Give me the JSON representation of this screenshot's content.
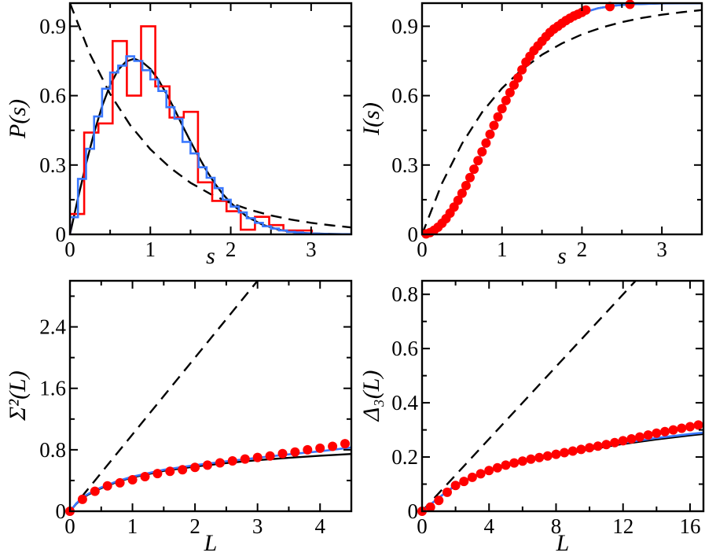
{
  "chart_data": [
    {
      "type": "line",
      "xlabel": "s",
      "ylabel": "P(s)",
      "xlim": [
        0,
        3.5
      ],
      "ylim": [
        0,
        1.0
      ],
      "xticks": [
        "0",
        "1",
        "2",
        "3"
      ],
      "yticks": [
        "0",
        "0.3",
        "0.6",
        "0.9"
      ],
      "grid": false,
      "series": [
        {
          "kind": "line",
          "color": "#000000",
          "dashed": true,
          "x": [
            0,
            0.25,
            0.5,
            0.75,
            1,
            1.25,
            1.5,
            1.75,
            2,
            2.25,
            2.5,
            2.75,
            3,
            3.25,
            3.5
          ],
          "y": [
            1,
            0.779,
            0.607,
            0.472,
            0.368,
            0.287,
            0.223,
            0.174,
            0.135,
            0.105,
            0.082,
            0.064,
            0.05,
            0.039,
            0.03
          ]
        },
        {
          "kind": "line",
          "color": "#000000",
          "dashed": false,
          "x": [
            0,
            0.1,
            0.2,
            0.3,
            0.4,
            0.5,
            0.6,
            0.7,
            0.8,
            0.9,
            1.0,
            1.1,
            1.2,
            1.3,
            1.4,
            1.5,
            1.6,
            1.7,
            1.8,
            1.9,
            2.0,
            2.2,
            2.4,
            2.6,
            2.8,
            3.0,
            3.5
          ],
          "y": [
            0,
            0.156,
            0.305,
            0.439,
            0.554,
            0.646,
            0.712,
            0.748,
            0.76,
            0.745,
            0.716,
            0.669,
            0.608,
            0.541,
            0.47,
            0.402,
            0.336,
            0.275,
            0.221,
            0.175,
            0.136,
            0.077,
            0.041,
            0.02,
            0.009,
            0.004,
            0.0003
          ]
        },
        {
          "kind": "step",
          "color": "#ff0000",
          "bin_width": 0.177,
          "values": [
            0.088,
            0.44,
            0.48,
            0.836,
            0.6,
            0.9,
            0.64,
            0.505,
            0.53,
            0.225,
            0.145,
            0.1,
            0.02,
            0.076,
            0.04,
            0.017,
            0.017
          ]
        },
        {
          "kind": "step",
          "color": "#3a78ff",
          "bin_width": 0.1,
          "values": [
            0.074,
            0.24,
            0.37,
            0.51,
            0.63,
            0.7,
            0.73,
            0.77,
            0.75,
            0.71,
            0.67,
            0.62,
            0.55,
            0.5,
            0.4,
            0.35,
            0.29,
            0.245,
            0.2,
            0.15,
            0.12,
            0.095,
            0.07,
            0.05,
            0.035,
            0.025,
            0.017,
            0.011,
            0.008,
            0.005,
            0.003,
            0.002,
            0.001,
            0.001,
            0.001
          ]
        }
      ]
    },
    {
      "type": "line",
      "xlabel": "s",
      "ylabel": "I(s)",
      "xlim": [
        0,
        3.5
      ],
      "ylim": [
        0,
        1.0
      ],
      "xticks": [
        "0",
        "1",
        "2",
        "3"
      ],
      "yticks": [
        "0",
        "0.3",
        "0.6",
        "0.9"
      ],
      "grid": false,
      "series": [
        {
          "kind": "line",
          "color": "#000000",
          "dashed": true,
          "x": [
            0,
            0.25,
            0.5,
            0.75,
            1,
            1.25,
            1.5,
            1.75,
            2,
            2.25,
            2.5,
            2.75,
            3,
            3.25,
            3.5
          ],
          "y": [
            0,
            0.221,
            0.393,
            0.528,
            0.632,
            0.713,
            0.777,
            0.826,
            0.865,
            0.895,
            0.918,
            0.936,
            0.95,
            0.961,
            0.97
          ]
        },
        {
          "kind": "scatter",
          "color": "#ff0000",
          "x": [
            0.05,
            0.1,
            0.15,
            0.2,
            0.25,
            0.3,
            0.35,
            0.4,
            0.45,
            0.5,
            0.55,
            0.6,
            0.65,
            0.7,
            0.75,
            0.8,
            0.85,
            0.9,
            0.95,
            1.0,
            1.05,
            1.1,
            1.15,
            1.2,
            1.25,
            1.3,
            1.35,
            1.4,
            1.45,
            1.5,
            1.55,
            1.6,
            1.65,
            1.7,
            1.75,
            1.8,
            1.85,
            1.9,
            1.95,
            2.0,
            2.05,
            2.35,
            2.6
          ],
          "y": [
            0.002,
            0.008,
            0.018,
            0.031,
            0.048,
            0.068,
            0.092,
            0.118,
            0.147,
            0.178,
            0.211,
            0.246,
            0.282,
            0.319,
            0.357,
            0.395,
            0.433,
            0.471,
            0.508,
            0.544,
            0.579,
            0.613,
            0.646,
            0.677,
            0.712,
            0.745,
            0.77,
            0.795,
            0.815,
            0.835,
            0.855,
            0.873,
            0.888,
            0.9,
            0.913,
            0.925,
            0.935,
            0.945,
            0.952,
            0.96,
            0.97,
            0.985,
            0.995
          ]
        },
        {
          "kind": "line",
          "color": "#000000",
          "dashed": false,
          "x": [
            0,
            0.1,
            0.2,
            0.3,
            0.4,
            0.5,
            0.6,
            0.7,
            0.8,
            0.9,
            1.0,
            1.1,
            1.2,
            1.3,
            1.4,
            1.5,
            1.6,
            1.7,
            1.8,
            1.9,
            2.0,
            2.2,
            2.4,
            2.6,
            3.0,
            3.5
          ],
          "y": [
            0,
            0.008,
            0.031,
            0.068,
            0.118,
            0.178,
            0.246,
            0.319,
            0.395,
            0.471,
            0.544,
            0.613,
            0.677,
            0.735,
            0.786,
            0.829,
            0.866,
            0.897,
            0.922,
            0.941,
            0.957,
            0.978,
            0.989,
            0.995,
            0.999,
            1.0
          ]
        },
        {
          "kind": "line",
          "color": "#3a78ff",
          "dashed": false,
          "x": [
            0,
            0.1,
            0.2,
            0.3,
            0.4,
            0.5,
            0.6,
            0.7,
            0.8,
            0.9,
            1.0,
            1.1,
            1.2,
            1.3,
            1.4,
            1.5,
            1.6,
            1.7,
            1.8,
            1.9,
            2.0,
            2.2,
            2.4,
            2.6,
            3.0,
            3.5
          ],
          "y": [
            0,
            0.008,
            0.031,
            0.068,
            0.118,
            0.178,
            0.246,
            0.319,
            0.395,
            0.471,
            0.544,
            0.613,
            0.677,
            0.735,
            0.786,
            0.829,
            0.866,
            0.897,
            0.922,
            0.941,
            0.957,
            0.978,
            0.989,
            0.995,
            0.999,
            1.0
          ]
        }
      ]
    },
    {
      "type": "line",
      "xlabel": "L",
      "ylabel": "Σ²(L)",
      "xlim": [
        0,
        4.5
      ],
      "ylim": [
        0,
        3.0
      ],
      "xticks": [
        "0",
        "1",
        "2",
        "3",
        "4"
      ],
      "yticks": [
        "0",
        "0.8",
        "1.6",
        "2.4"
      ],
      "grid": false,
      "series": [
        {
          "kind": "line",
          "color": "#000000",
          "dashed": true,
          "x": [
            0,
            3.0
          ],
          "y": [
            0,
            3.0
          ]
        },
        {
          "kind": "line",
          "color": "#000000",
          "dashed": false,
          "x": [
            0,
            0.1,
            0.2,
            0.3,
            0.5,
            0.75,
            1,
            1.5,
            2,
            2.5,
            3,
            3.5,
            4,
            4.5
          ],
          "y": [
            0,
            0.095,
            0.17,
            0.22,
            0.3,
            0.38,
            0.44,
            0.525,
            0.582,
            0.627,
            0.664,
            0.695,
            0.723,
            0.745
          ]
        },
        {
          "kind": "scatter",
          "color": "#ff0000",
          "x": [
            0,
            0.2,
            0.4,
            0.6,
            0.8,
            1.0,
            1.2,
            1.4,
            1.6,
            1.8,
            2.0,
            2.2,
            2.4,
            2.6,
            2.8,
            3.0,
            3.2,
            3.4,
            3.6,
            3.8,
            4.0,
            4.2,
            4.4
          ],
          "y": [
            0,
            0.155,
            0.26,
            0.33,
            0.37,
            0.41,
            0.45,
            0.49,
            0.52,
            0.54,
            0.57,
            0.6,
            0.63,
            0.655,
            0.68,
            0.7,
            0.72,
            0.75,
            0.77,
            0.8,
            0.82,
            0.845,
            0.88
          ]
        },
        {
          "kind": "line",
          "color": "#3a78ff",
          "dashed": false,
          "x": [
            0,
            0.1,
            0.2,
            0.3,
            0.5,
            0.75,
            1,
            1.5,
            2,
            2.5,
            3,
            3.5,
            4,
            4.5
          ],
          "y": [
            0,
            0.1,
            0.18,
            0.23,
            0.31,
            0.39,
            0.45,
            0.54,
            0.6,
            0.65,
            0.695,
            0.74,
            0.78,
            0.83
          ]
        }
      ]
    },
    {
      "type": "line",
      "xlabel": "L",
      "ylabel": "Δ₃(L)",
      "xlim": [
        0,
        16.8
      ],
      "ylim": [
        0,
        0.85
      ],
      "xticks": [
        "0",
        "4",
        "8",
        "12",
        "16"
      ],
      "yticks": [
        "0",
        "0.2",
        "0.4",
        "0.6",
        "0.8"
      ],
      "grid": false,
      "series": [
        {
          "kind": "line",
          "color": "#000000",
          "dashed": true,
          "x": [
            0,
            12.75
          ],
          "y": [
            0,
            0.85
          ]
        },
        {
          "kind": "scatter",
          "color": "#ff0000",
          "x": [
            0,
            0.5,
            1,
            1.5,
            2,
            2.5,
            3,
            3.5,
            4,
            4.5,
            5,
            5.5,
            6,
            6.5,
            7,
            7.5,
            8,
            8.5,
            9,
            9.5,
            10,
            10.5,
            11,
            11.5,
            12,
            12.5,
            13,
            13.5,
            14,
            14.5,
            15,
            15.5,
            16,
            16.5
          ],
          "y": [
            0,
            0.015,
            0.04,
            0.07,
            0.095,
            0.11,
            0.125,
            0.138,
            0.15,
            0.16,
            0.17,
            0.178,
            0.185,
            0.192,
            0.198,
            0.204,
            0.21,
            0.216,
            0.222,
            0.228,
            0.234,
            0.24,
            0.246,
            0.253,
            0.26,
            0.267,
            0.274,
            0.281,
            0.288,
            0.294,
            0.3,
            0.306,
            0.312,
            0.318
          ]
        },
        {
          "kind": "line",
          "color": "#000000",
          "dashed": false,
          "x": [
            0,
            0.5,
            1,
            2,
            3,
            4,
            6,
            8,
            10,
            12,
            14,
            16,
            16.8
          ],
          "y": [
            0,
            0.025,
            0.05,
            0.095,
            0.125,
            0.15,
            0.183,
            0.205,
            0.228,
            0.248,
            0.265,
            0.28,
            0.285
          ]
        },
        {
          "kind": "line",
          "color": "#3a78ff",
          "dashed": false,
          "x": [
            0,
            0.5,
            1,
            2,
            3,
            4,
            6,
            8,
            10,
            12,
            14,
            16,
            16.8
          ],
          "y": [
            0,
            0.025,
            0.05,
            0.097,
            0.127,
            0.152,
            0.185,
            0.208,
            0.231,
            0.252,
            0.27,
            0.285,
            0.29
          ]
        }
      ]
    }
  ]
}
